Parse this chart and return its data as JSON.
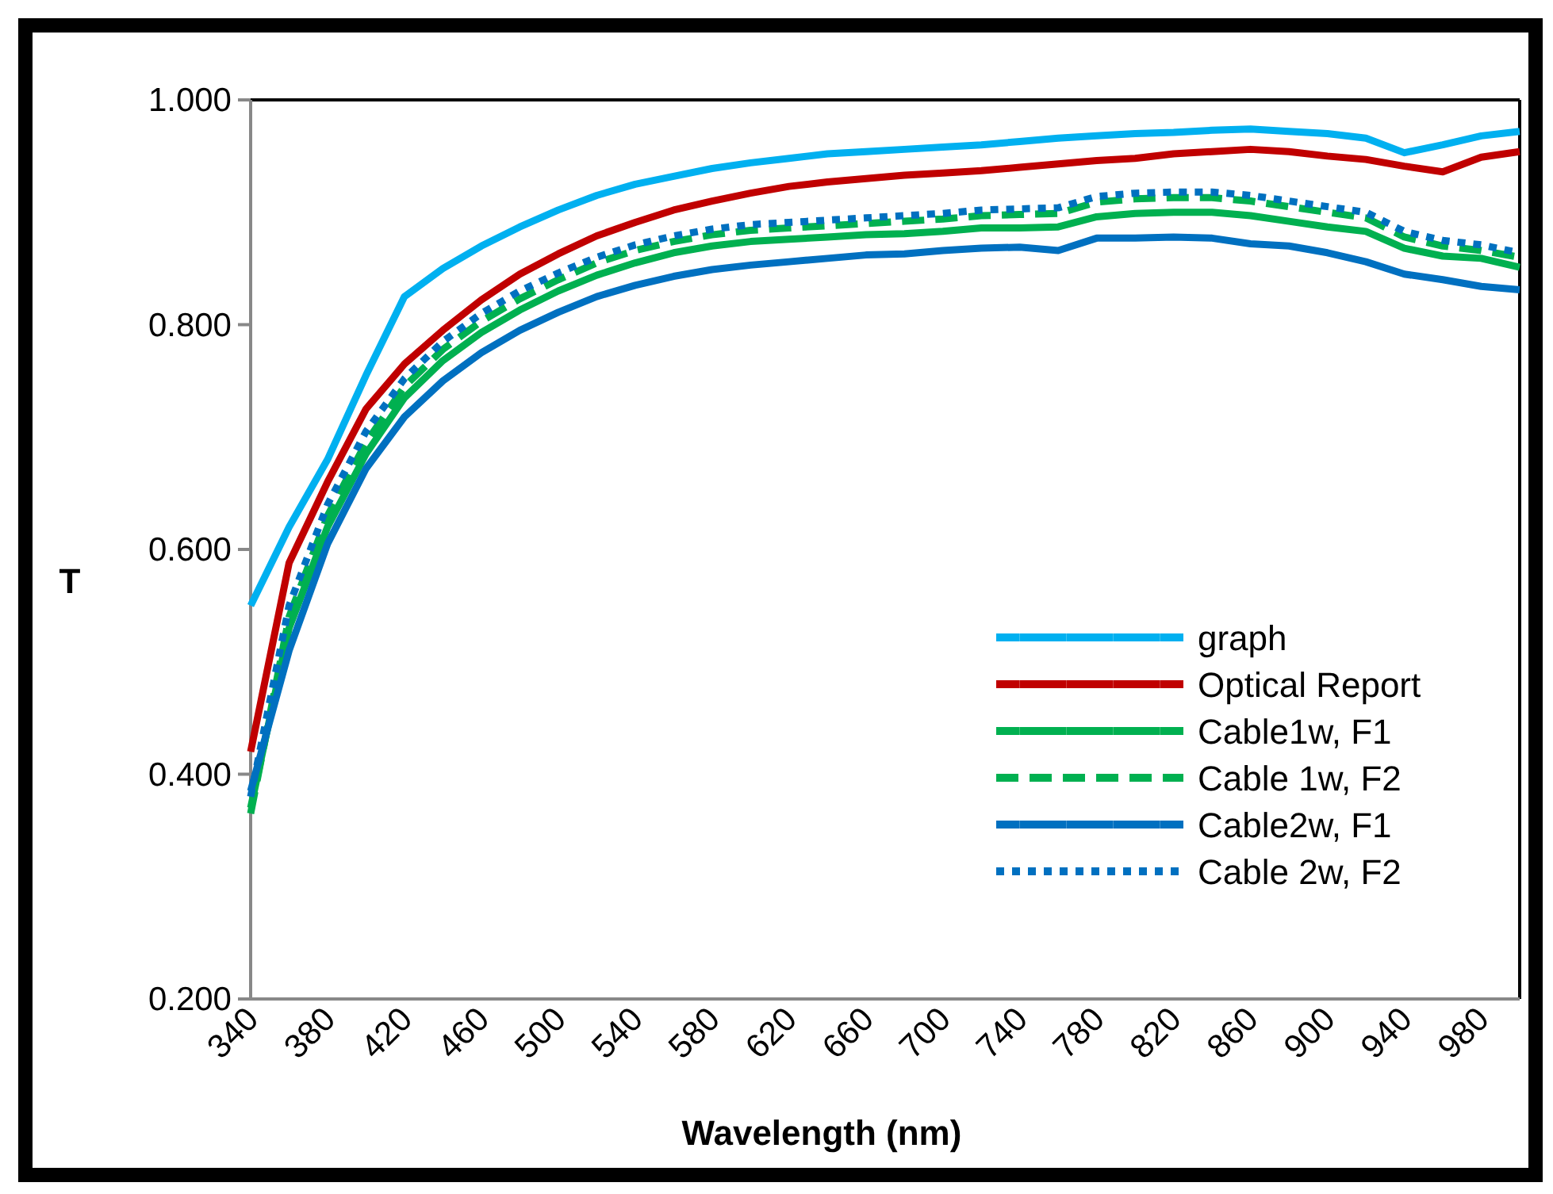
{
  "chart_data": {
    "type": "line",
    "xlabel": "Wavelength (nm)",
    "ylabel": "T",
    "x": [
      340,
      360,
      380,
      400,
      420,
      440,
      460,
      480,
      500,
      520,
      540,
      560,
      580,
      600,
      620,
      640,
      660,
      680,
      700,
      720,
      740,
      760,
      780,
      800,
      820,
      840,
      860,
      880,
      900,
      920,
      940,
      960,
      980,
      1000
    ],
    "series": [
      {
        "name": "graph",
        "color": "#00b0f0",
        "line_style": "solid",
        "values": [
          0.55,
          0.62,
          0.68,
          0.755,
          0.825,
          0.85,
          0.87,
          0.887,
          0.902,
          0.915,
          0.925,
          0.932,
          0.939,
          0.944,
          0.948,
          0.952,
          0.954,
          0.956,
          0.958,
          0.96,
          0.963,
          0.966,
          0.968,
          0.97,
          0.971,
          0.973,
          0.974,
          0.972,
          0.97,
          0.966,
          0.953,
          0.96,
          0.968,
          0.972
        ]
      },
      {
        "name": "Optical Report",
        "color": "#c00000",
        "line_style": "solid",
        "values": [
          0.42,
          0.588,
          0.66,
          0.725,
          0.765,
          0.795,
          0.822,
          0.845,
          0.863,
          0.879,
          0.891,
          0.902,
          0.91,
          0.917,
          0.923,
          0.927,
          0.93,
          0.933,
          0.935,
          0.937,
          0.94,
          0.943,
          0.946,
          0.948,
          0.952,
          0.954,
          0.956,
          0.954,
          0.95,
          0.947,
          0.941,
          0.936,
          0.949,
          0.954
        ]
      },
      {
        "name": "Cable1w, F1",
        "color": "#00b050",
        "line_style": "solid",
        "values": [
          0.37,
          0.53,
          0.62,
          0.685,
          0.735,
          0.768,
          0.793,
          0.813,
          0.83,
          0.844,
          0.855,
          0.864,
          0.87,
          0.874,
          0.876,
          0.878,
          0.88,
          0.881,
          0.883,
          0.886,
          0.886,
          0.887,
          0.896,
          0.899,
          0.9,
          0.9,
          0.897,
          0.892,
          0.887,
          0.883,
          0.868,
          0.861,
          0.859,
          0.851
        ]
      },
      {
        "name": "Cable 1w, F2",
        "color": "#00b050",
        "line_style": "dashed",
        "values": [
          0.365,
          0.54,
          0.63,
          0.695,
          0.745,
          0.778,
          0.803,
          0.823,
          0.84,
          0.855,
          0.866,
          0.874,
          0.88,
          0.884,
          0.886,
          0.888,
          0.89,
          0.892,
          0.894,
          0.897,
          0.898,
          0.899,
          0.909,
          0.912,
          0.913,
          0.913,
          0.91,
          0.905,
          0.9,
          0.895,
          0.878,
          0.87,
          0.866,
          0.86
        ]
      },
      {
        "name": "Cable2w, F1",
        "color": "#0070c0",
        "line_style": "solid",
        "values": [
          0.385,
          0.51,
          0.605,
          0.672,
          0.718,
          0.75,
          0.775,
          0.795,
          0.811,
          0.825,
          0.835,
          0.843,
          0.849,
          0.853,
          0.856,
          0.859,
          0.862,
          0.863,
          0.866,
          0.868,
          0.869,
          0.866,
          0.877,
          0.877,
          0.878,
          0.877,
          0.872,
          0.87,
          0.864,
          0.856,
          0.845,
          0.84,
          0.834,
          0.831
        ]
      },
      {
        "name": "Cable 2w, F2",
        "color": "#0070c0",
        "line_style": "dotted",
        "values": [
          0.38,
          0.55,
          0.64,
          0.705,
          0.752,
          0.785,
          0.81,
          0.83,
          0.846,
          0.86,
          0.871,
          0.879,
          0.885,
          0.889,
          0.891,
          0.893,
          0.895,
          0.897,
          0.899,
          0.902,
          0.903,
          0.904,
          0.914,
          0.917,
          0.918,
          0.918,
          0.915,
          0.91,
          0.905,
          0.9,
          0.883,
          0.875,
          0.871,
          0.864
        ]
      }
    ],
    "xlim": [
      340,
      1000
    ],
    "xticks": [
      340,
      380,
      420,
      460,
      500,
      540,
      580,
      620,
      660,
      700,
      740,
      780,
      820,
      860,
      900,
      940,
      980
    ],
    "ylim": [
      0.2,
      1.0
    ],
    "yticks": [
      {
        "value": 0.2,
        "label": "0.200"
      },
      {
        "value": 0.4,
        "label": "0.400"
      },
      {
        "value": 0.6,
        "label": "0.600"
      },
      {
        "value": 0.8,
        "label": "0.800"
      },
      {
        "value": 1.0,
        "label": "1.000"
      }
    ],
    "grid": false,
    "legend": "bottom right"
  }
}
